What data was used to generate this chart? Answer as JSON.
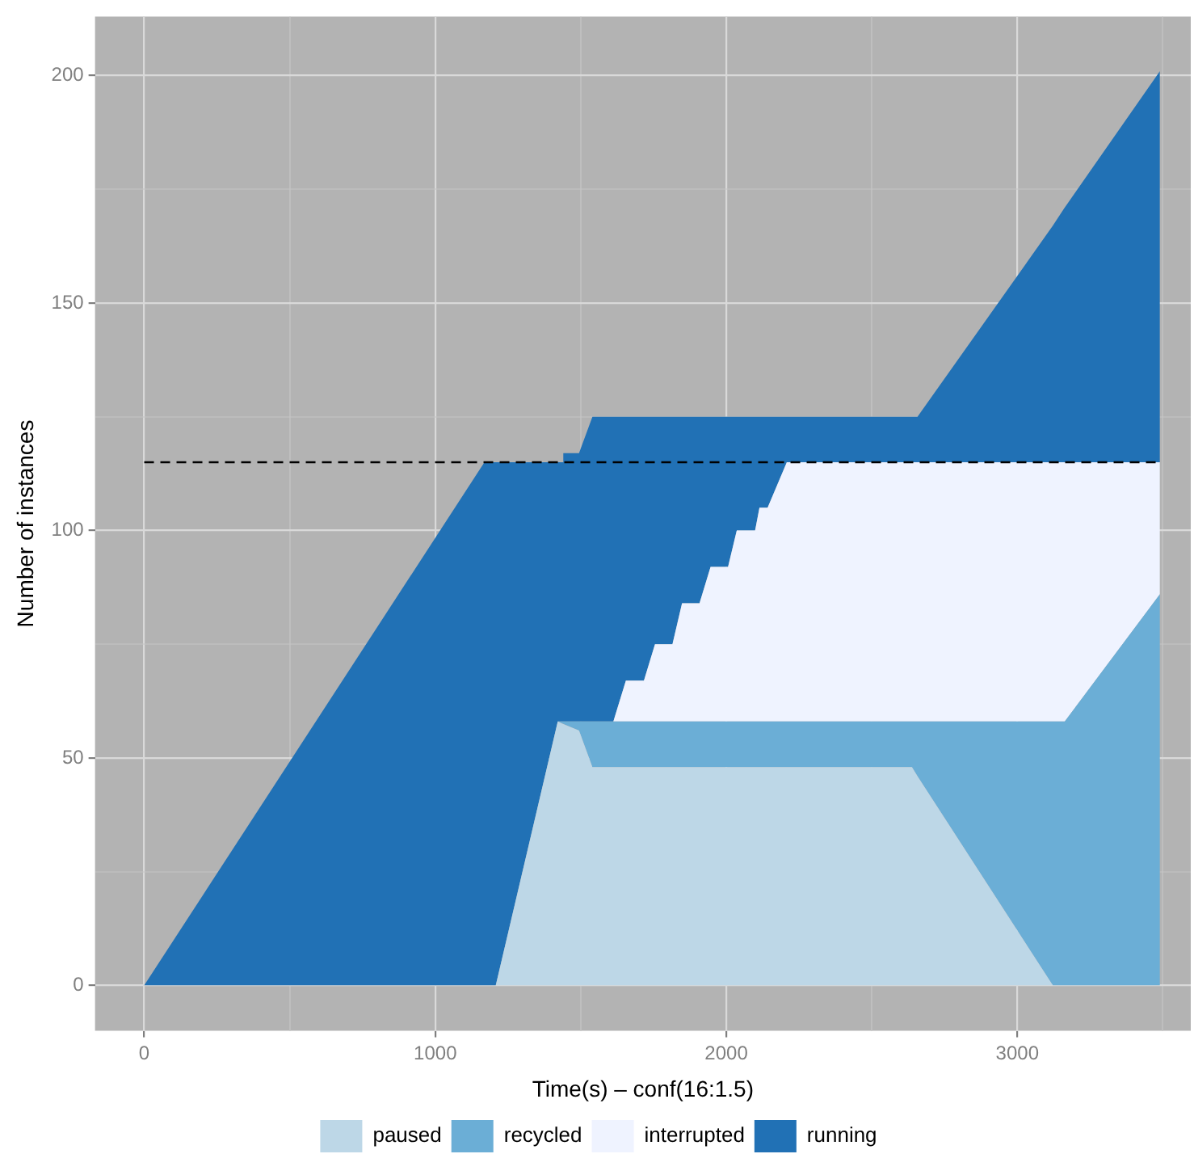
{
  "chart_data": {
    "type": "area",
    "stacked": true,
    "xlabel": "Time(s) – conf(16:1.5)",
    "ylabel": "Number of instances",
    "x": [
      0,
      1169,
      1208,
      1421,
      1438,
      1440,
      1494,
      1540,
      1612,
      1655,
      1717,
      1755,
      1815,
      1848,
      1908,
      1946,
      2006,
      2036,
      2099,
      2114,
      2142,
      2208,
      2638,
      2657,
      3122,
      3163,
      3490
    ],
    "series": [
      {
        "name": "paused",
        "color": "#bdd7e7",
        "values": [
          0,
          0,
          0,
          58,
          57.5,
          57.5,
          56,
          48,
          48,
          48,
          48,
          48,
          48,
          48,
          48,
          48,
          48,
          48,
          48,
          48,
          48,
          48,
          48,
          46,
          0,
          0,
          0
        ]
      },
      {
        "name": "recycled",
        "color": "#6baed6",
        "values": [
          0,
          0,
          0,
          0,
          0.5,
          0.5,
          2,
          10,
          10,
          10,
          10,
          10,
          10,
          10,
          10,
          10,
          10,
          10,
          10,
          10,
          10,
          10,
          10,
          12,
          58,
          58,
          86
        ]
      },
      {
        "name": "interrupted",
        "color": "#eff3ff",
        "values": [
          0,
          0,
          0,
          0,
          0,
          0,
          0,
          0,
          0,
          9,
          9,
          17,
          17,
          26,
          26,
          34,
          34,
          42,
          42,
          47,
          47,
          57,
          57,
          57,
          57,
          57,
          29
        ]
      },
      {
        "name": "running",
        "color": "#2171b5",
        "values": [
          0,
          115,
          115,
          57,
          57,
          59,
          59,
          67,
          67,
          58,
          58,
          50,
          50,
          41,
          41,
          33,
          33,
          25,
          25,
          20,
          20,
          10,
          10,
          10,
          52,
          56,
          86
        ]
      }
    ],
    "xlim": [
      -169,
      3596
    ],
    "ylim": [
      -10,
      213
    ],
    "xticks": [
      0,
      {
        "value": 500,
        "label": null
      },
      1000,
      {
        "value": 1500,
        "label": null
      },
      2000,
      {
        "value": 2500,
        "label": null
      },
      3000,
      {
        "value": 3500,
        "label": null
      }
    ],
    "yticks": [
      0,
      {
        "value": 25,
        "label": null
      },
      50,
      {
        "value": 75,
        "label": null
      },
      100,
      {
        "value": 125,
        "label": null
      },
      150,
      {
        "value": 175,
        "label": null
      },
      200
    ],
    "ref_lines": [
      {
        "axis": "y",
        "value": 115,
        "line_style": "dashed",
        "color": "#000000"
      }
    ],
    "grid": true,
    "legend": "bottom"
  }
}
